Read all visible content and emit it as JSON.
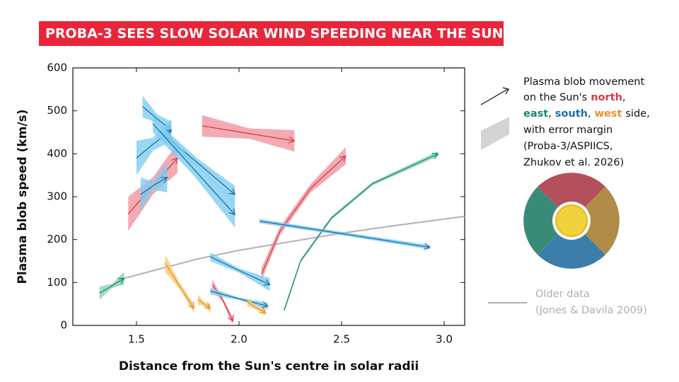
{
  "chart_data": {
    "type": "arrow-band",
    "title": "PROBA-3 SEES SLOW SOLAR WIND SPEEDING NEAR THE SUN",
    "x_label": "Distance from the Sun's centre in solar radii",
    "y_label": "Plasma blob speed (km/s)",
    "xlim": [
      1.19,
      3.1
    ],
    "ylim": [
      0,
      600
    ],
    "xticks": [
      1.5,
      {
        "value": 2,
        "label": "2.0"
      },
      2.5,
      {
        "value": 3,
        "label": "3.0"
      }
    ],
    "yticks": [
      0,
      100,
      200,
      300,
      400,
      500,
      600
    ],
    "series": [
      {
        "color": "#d83a4c",
        "band_color": "#f0959f",
        "x": [
          1.82,
          2.05,
          2.27
        ],
        "values": [
          465,
          447,
          430
        ],
        "errors": [
          25,
          12,
          25
        ]
      },
      {
        "color": "#d83a4c",
        "band_color": "#f0959f",
        "x": [
          1.46,
          1.58,
          1.7
        ],
        "values": [
          260,
          325,
          390
        ],
        "errors": [
          40,
          20,
          35
        ]
      },
      {
        "color": "#d83a4c",
        "band_color": "#f0959f",
        "x": [
          2.11,
          2.2,
          2.35,
          2.52
        ],
        "values": [
          120,
          220,
          320,
          395
        ],
        "errors": [
          15,
          10,
          10,
          20
        ]
      },
      {
        "color": "#d83a4c",
        "band_color": "#f0959f",
        "x": [
          1.87,
          1.92,
          1.97
        ],
        "values": [
          95,
          60,
          10
        ],
        "errors": [
          12,
          5,
          8
        ]
      },
      {
        "color": "#16876f",
        "band_color": "#8fd0bc",
        "x": [
          1.32,
          1.38,
          1.44
        ],
        "values": [
          75,
          92,
          110
        ],
        "errors": [
          15,
          5,
          15
        ]
      },
      {
        "color": "#16876f",
        "band_color": "#8fd0bc",
        "x": [
          2.22,
          2.3,
          2.45,
          2.65,
          2.97
        ],
        "values": [
          35,
          150,
          250,
          330,
          400
        ],
        "errors": [
          5,
          4,
          4,
          4,
          6
        ]
      },
      {
        "color": "#1f6fa8",
        "band_color": "#80cdf0",
        "x": [
          1.53,
          1.6,
          1.67
        ],
        "values": [
          510,
          482,
          455
        ],
        "errors": [
          25,
          10,
          20
        ]
      },
      {
        "color": "#1f6fa8",
        "band_color": "#80cdf0",
        "x": [
          1.5,
          1.58,
          1.67
        ],
        "values": [
          390,
          422,
          455
        ],
        "errors": [
          40,
          15,
          25
        ]
      },
      {
        "color": "#1f6fa8",
        "band_color": "#80cdf0",
        "x": [
          1.62,
          1.8,
          1.98
        ],
        "values": [
          450,
          378,
          305
        ],
        "errors": [
          15,
          10,
          20
        ]
      },
      {
        "color": "#1f6fa8",
        "band_color": "#80cdf0",
        "x": [
          1.58,
          1.78,
          1.98
        ],
        "values": [
          470,
          364,
          258
        ],
        "errors": [
          20,
          15,
          30
        ]
      },
      {
        "color": "#1f6fa8",
        "band_color": "#80cdf0",
        "x": [
          1.52,
          1.58,
          1.65
        ],
        "values": [
          305,
          325,
          345
        ],
        "errors": [
          40,
          10,
          35
        ]
      },
      {
        "color": "#1f6fa8",
        "band_color": "#80cdf0",
        "x": [
          2.1,
          2.5,
          2.93
        ],
        "values": [
          243,
          214,
          182
        ],
        "errors": [
          5,
          4,
          5
        ]
      },
      {
        "color": "#1f6fa8",
        "band_color": "#80cdf0",
        "x": [
          1.86,
          2.0,
          2.15
        ],
        "values": [
          160,
          128,
          95
        ],
        "errors": [
          10,
          5,
          15
        ]
      },
      {
        "color": "#1f6fa8",
        "band_color": "#80cdf0",
        "x": [
          1.86,
          2.0,
          2.14
        ],
        "values": [
          80,
          62,
          45
        ],
        "errors": [
          8,
          3,
          8
        ]
      },
      {
        "color": "#e8902a",
        "band_color": "#f8cc6e",
        "x": [
          1.64,
          1.71,
          1.78
        ],
        "values": [
          145,
          92,
          40
        ],
        "errors": [
          20,
          8,
          10
        ]
      },
      {
        "color": "#e8902a",
        "band_color": "#f8cc6e",
        "x": [
          1.8,
          1.83,
          1.86
        ],
        "values": [
          60,
          50,
          40
        ],
        "errors": [
          12,
          5,
          10
        ]
      },
      {
        "color": "#e8902a",
        "band_color": "#f8cc6e",
        "x": [
          2.04,
          2.08,
          2.13
        ],
        "values": [
          55,
          42,
          30
        ],
        "errors": [
          10,
          4,
          8
        ]
      }
    ],
    "reference": {
      "name": "Older data",
      "note": "(Jones & Davila 2009)",
      "color": "#b0b0b0",
      "x": [
        1.42,
        1.6,
        1.8,
        2.0,
        2.25,
        2.5,
        2.75,
        3.1
      ],
      "values": [
        107,
        130,
        155,
        175,
        195,
        215,
        232,
        254
      ]
    },
    "legend": {
      "line1": "Plasma blob movement",
      "line2": "on the Sun's",
      "sides": [
        {
          "label": "north",
          "color": "#d83a4c"
        },
        {
          "label": "east",
          "color": "#16876f"
        },
        {
          "label": "south",
          "color": "#1f6fa8"
        },
        {
          "label": "west",
          "color": "#e8902a"
        }
      ],
      "separator": ",",
      "line3_end": "side,",
      "line4": "with error margin",
      "line5": "(Proba-3/ASPIICS,",
      "line6": "Zhukov et al. 2026)"
    }
  }
}
